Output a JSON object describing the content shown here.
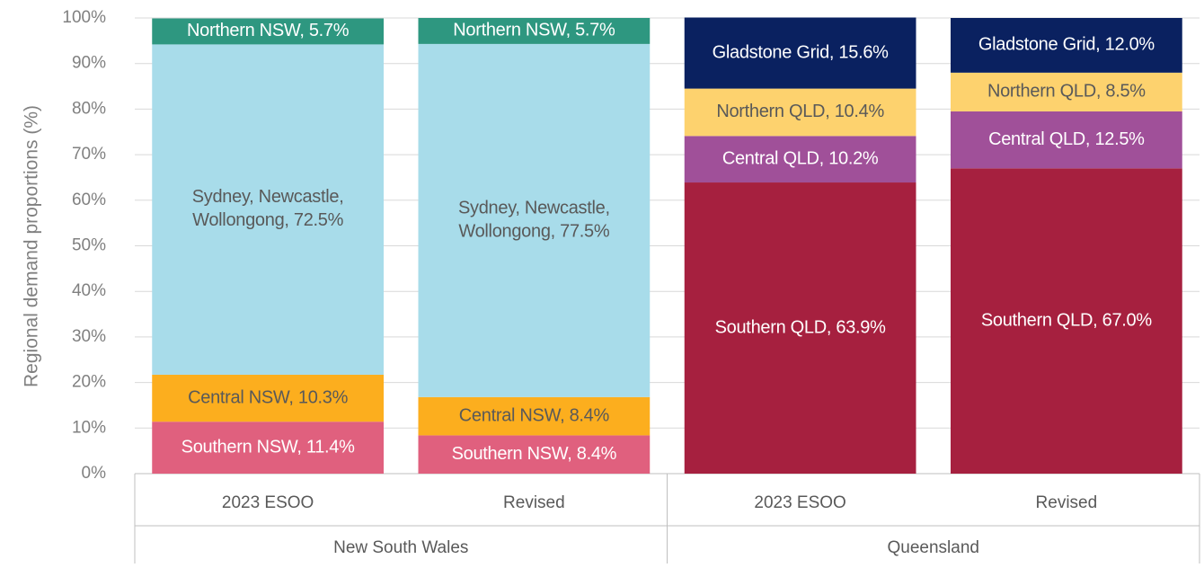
{
  "chart_data": {
    "type": "stacked_bar",
    "y_label": "Regional demand proportions (%)",
    "groups": [
      {
        "name": "New South Wales",
        "categories": [
          "2023 ESOO",
          "Revised"
        ]
      },
      {
        "name": "Queensland",
        "categories": [
          "2023 ESOO",
          "Revised"
        ]
      }
    ],
    "ylim": [
      0,
      100
    ],
    "yticks": [
      {
        "value": 0,
        "label": "0%"
      },
      {
        "value": 10,
        "label": "10%"
      },
      {
        "value": 20,
        "label": "20%"
      },
      {
        "value": 30,
        "label": "30%"
      },
      {
        "value": 40,
        "label": "40%"
      },
      {
        "value": 50,
        "label": "50%"
      },
      {
        "value": 60,
        "label": "60%"
      },
      {
        "value": 70,
        "label": "70%"
      },
      {
        "value": 80,
        "label": "80%"
      },
      {
        "value": 90,
        "label": "90%"
      },
      {
        "value": 100,
        "label": "100%"
      }
    ],
    "grid": true,
    "series": [
      {
        "color": "#e0607e",
        "label_color": "#ffffff",
        "values": [
          11.4,
          8.4,
          null,
          null
        ],
        "value_labels": [
          "Southern NSW, 11.4%",
          "Southern NSW, 8.4%",
          null,
          null
        ]
      },
      {
        "color": "#fcae1e",
        "label_color": "#595959",
        "values": [
          10.3,
          8.4,
          null,
          null
        ],
        "value_labels": [
          "Central NSW, 10.3%",
          "Central NSW, 8.4%",
          null,
          null
        ]
      },
      {
        "color": "#a8dcea",
        "label_color": "#595959",
        "values": [
          72.5,
          77.5,
          null,
          null
        ],
        "value_labels": [
          "Sydney, Newcastle,\nWollongong, 72.5%",
          "Sydney, Newcastle,\nWollongong, 77.5%",
          null,
          null
        ]
      },
      {
        "color": "#2e9780",
        "label_color": "#ffffff",
        "values": [
          5.7,
          5.7,
          null,
          null
        ],
        "value_labels": [
          "Northern NSW, 5.7%",
          "Northern NSW, 5.7%",
          null,
          null
        ]
      },
      {
        "color": "#a6203f",
        "label_color": "#ffffff",
        "values": [
          null,
          null,
          63.9,
          67.0
        ],
        "value_labels": [
          null,
          null,
          "Southern QLD, 63.9%",
          "Southern QLD, 67.0%"
        ]
      },
      {
        "color": "#a05099",
        "label_color": "#ffffff",
        "values": [
          null,
          null,
          10.2,
          12.5
        ],
        "value_labels": [
          null,
          null,
          "Central QLD, 10.2%",
          "Central QLD, 12.5%"
        ]
      },
      {
        "color": "#fdd26e",
        "label_color": "#595959",
        "values": [
          null,
          null,
          10.4,
          8.5
        ],
        "value_labels": [
          null,
          null,
          "Northern QLD, 10.4%",
          "Northern QLD, 8.5%"
        ]
      },
      {
        "color": "#0a2160",
        "label_color": "#ffffff",
        "values": [
          null,
          null,
          15.6,
          12.0
        ],
        "value_labels": [
          null,
          null,
          "Gladstone Grid, 15.6%",
          "Gladstone Grid, 12.0%"
        ]
      }
    ]
  }
}
